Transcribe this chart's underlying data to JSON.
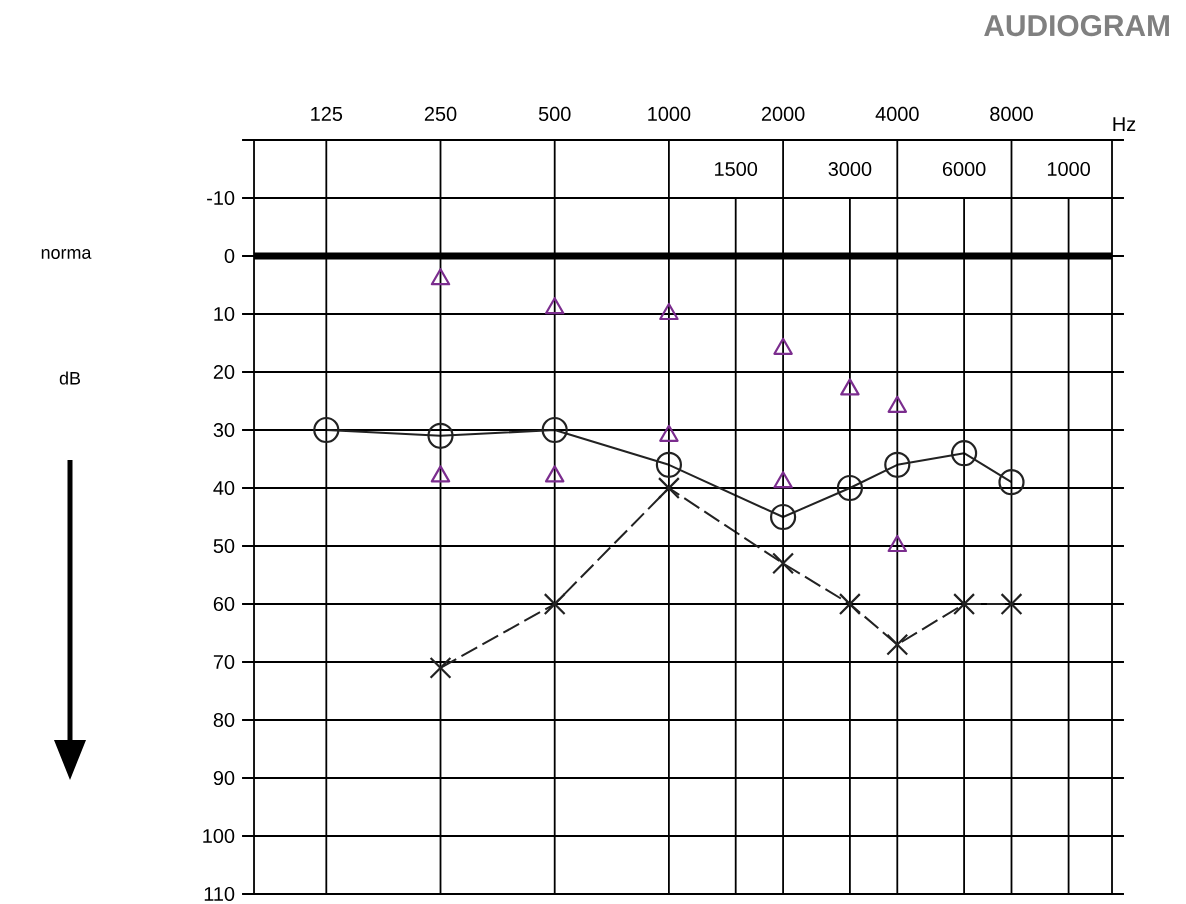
{
  "chart_data": {
    "type": "line",
    "title": "AUDIOGRAM",
    "xlabel": "Hz",
    "annotations": [
      "norma",
      "dB",
      "1500",
      "3000",
      "6000",
      "1000"
    ],
    "log": "x",
    "xlim": [
      80.6,
      14725
    ],
    "ylim": [
      110,
      -20
    ],
    "xticks": [
      125,
      250,
      500,
      1000,
      {
        "value": 1500,
        "label": null
      },
      2000,
      {
        "value": 3000,
        "label": null
      },
      4000,
      {
        "value": 6000,
        "label": null
      },
      8000,
      {
        "value": 11314,
        "label": null
      }
    ],
    "yticks": [
      {
        "value": -20,
        "label": null
      },
      -10,
      0,
      10,
      20,
      30,
      40,
      50,
      60,
      70,
      80,
      90,
      100,
      110
    ],
    "grid": true,
    "ref_lines": [
      {
        "axis": "y",
        "value": 0,
        "color": "#000000"
      }
    ],
    "series": [
      {
        "color": "#222222",
        "marker": "circle",
        "line_style": "solid",
        "x": [
          125,
          250,
          500,
          1000,
          2000,
          3000,
          4000,
          6000,
          8000
        ],
        "values": [
          30,
          31,
          30,
          36,
          45,
          40,
          36,
          34,
          39
        ]
      },
      {
        "color": "#222222",
        "marker": "cross",
        "line_style": "dashed",
        "x": [
          250,
          500,
          1000,
          2000,
          3000,
          4000,
          6000,
          8000
        ],
        "values": [
          71,
          60,
          40,
          53,
          60,
          67,
          60,
          60
        ]
      },
      {
        "type": "scatter",
        "color": "#7b2d8e",
        "marker": "triangle",
        "x": [
          250,
          500,
          1000,
          2000,
          3000,
          4000
        ],
        "values": [
          4,
          9,
          10,
          16,
          23,
          26
        ]
      },
      {
        "type": "scatter",
        "color": "#7b2d8e",
        "marker": "triangle",
        "x": [
          250,
          500,
          1000,
          2000,
          4000
        ],
        "values": [
          38,
          38,
          31,
          39,
          50
        ]
      }
    ]
  }
}
